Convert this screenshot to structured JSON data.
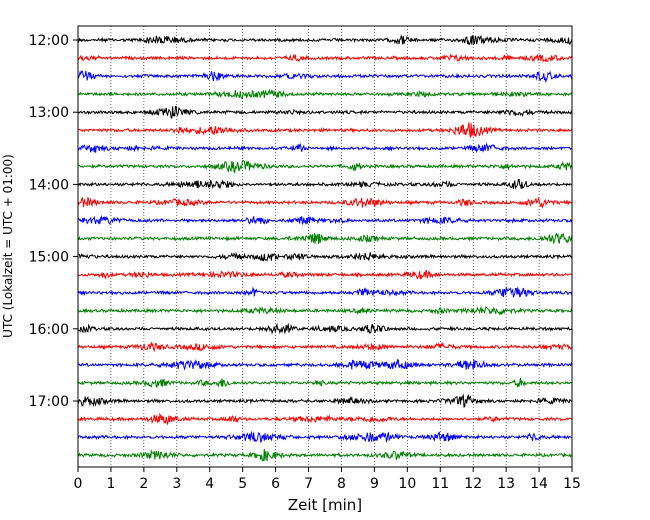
{
  "chart_data": {
    "type": "line",
    "title": "",
    "xlabel": "Zeit  [min]",
    "ylabel": "UTC (Lokalzeit = UTC + 01:00)",
    "xlim": [
      0,
      15
    ],
    "x_ticks": [
      "0",
      "1",
      "2",
      "3",
      "4",
      "5",
      "6",
      "7",
      "8",
      "9",
      "10",
      "11",
      "12",
      "13",
      "14",
      "15"
    ],
    "y_tick_labels": [
      "12:00",
      "13:00",
      "14:00",
      "15:00",
      "16:00",
      "17:00"
    ],
    "grid": "vertical-dotted",
    "trace_interval_min": 15,
    "start_time": "12:00",
    "colors_cycle": [
      "#000000",
      "#ff0000",
      "#0000ff",
      "#008000"
    ],
    "series": [
      {
        "start": "12:00",
        "color": "#000000"
      },
      {
        "start": "12:15",
        "color": "#ff0000"
      },
      {
        "start": "12:30",
        "color": "#0000ff"
      },
      {
        "start": "12:45",
        "color": "#008000"
      },
      {
        "start": "13:00",
        "color": "#000000"
      },
      {
        "start": "13:15",
        "color": "#ff0000"
      },
      {
        "start": "13:30",
        "color": "#0000ff"
      },
      {
        "start": "13:45",
        "color": "#008000"
      },
      {
        "start": "14:00",
        "color": "#000000"
      },
      {
        "start": "14:15",
        "color": "#ff0000"
      },
      {
        "start": "14:30",
        "color": "#0000ff"
      },
      {
        "start": "14:45",
        "color": "#008000"
      },
      {
        "start": "15:00",
        "color": "#000000"
      },
      {
        "start": "15:15",
        "color": "#ff0000"
      },
      {
        "start": "15:30",
        "color": "#0000ff"
      },
      {
        "start": "15:45",
        "color": "#008000"
      },
      {
        "start": "16:00",
        "color": "#000000"
      },
      {
        "start": "16:15",
        "color": "#ff0000"
      },
      {
        "start": "16:30",
        "color": "#0000ff"
      },
      {
        "start": "16:45",
        "color": "#008000"
      },
      {
        "start": "17:00",
        "color": "#000000"
      },
      {
        "start": "17:15",
        "color": "#ff0000"
      },
      {
        "start": "17:30",
        "color": "#0000ff"
      },
      {
        "start": "17:45",
        "color": "#008000"
      }
    ]
  }
}
